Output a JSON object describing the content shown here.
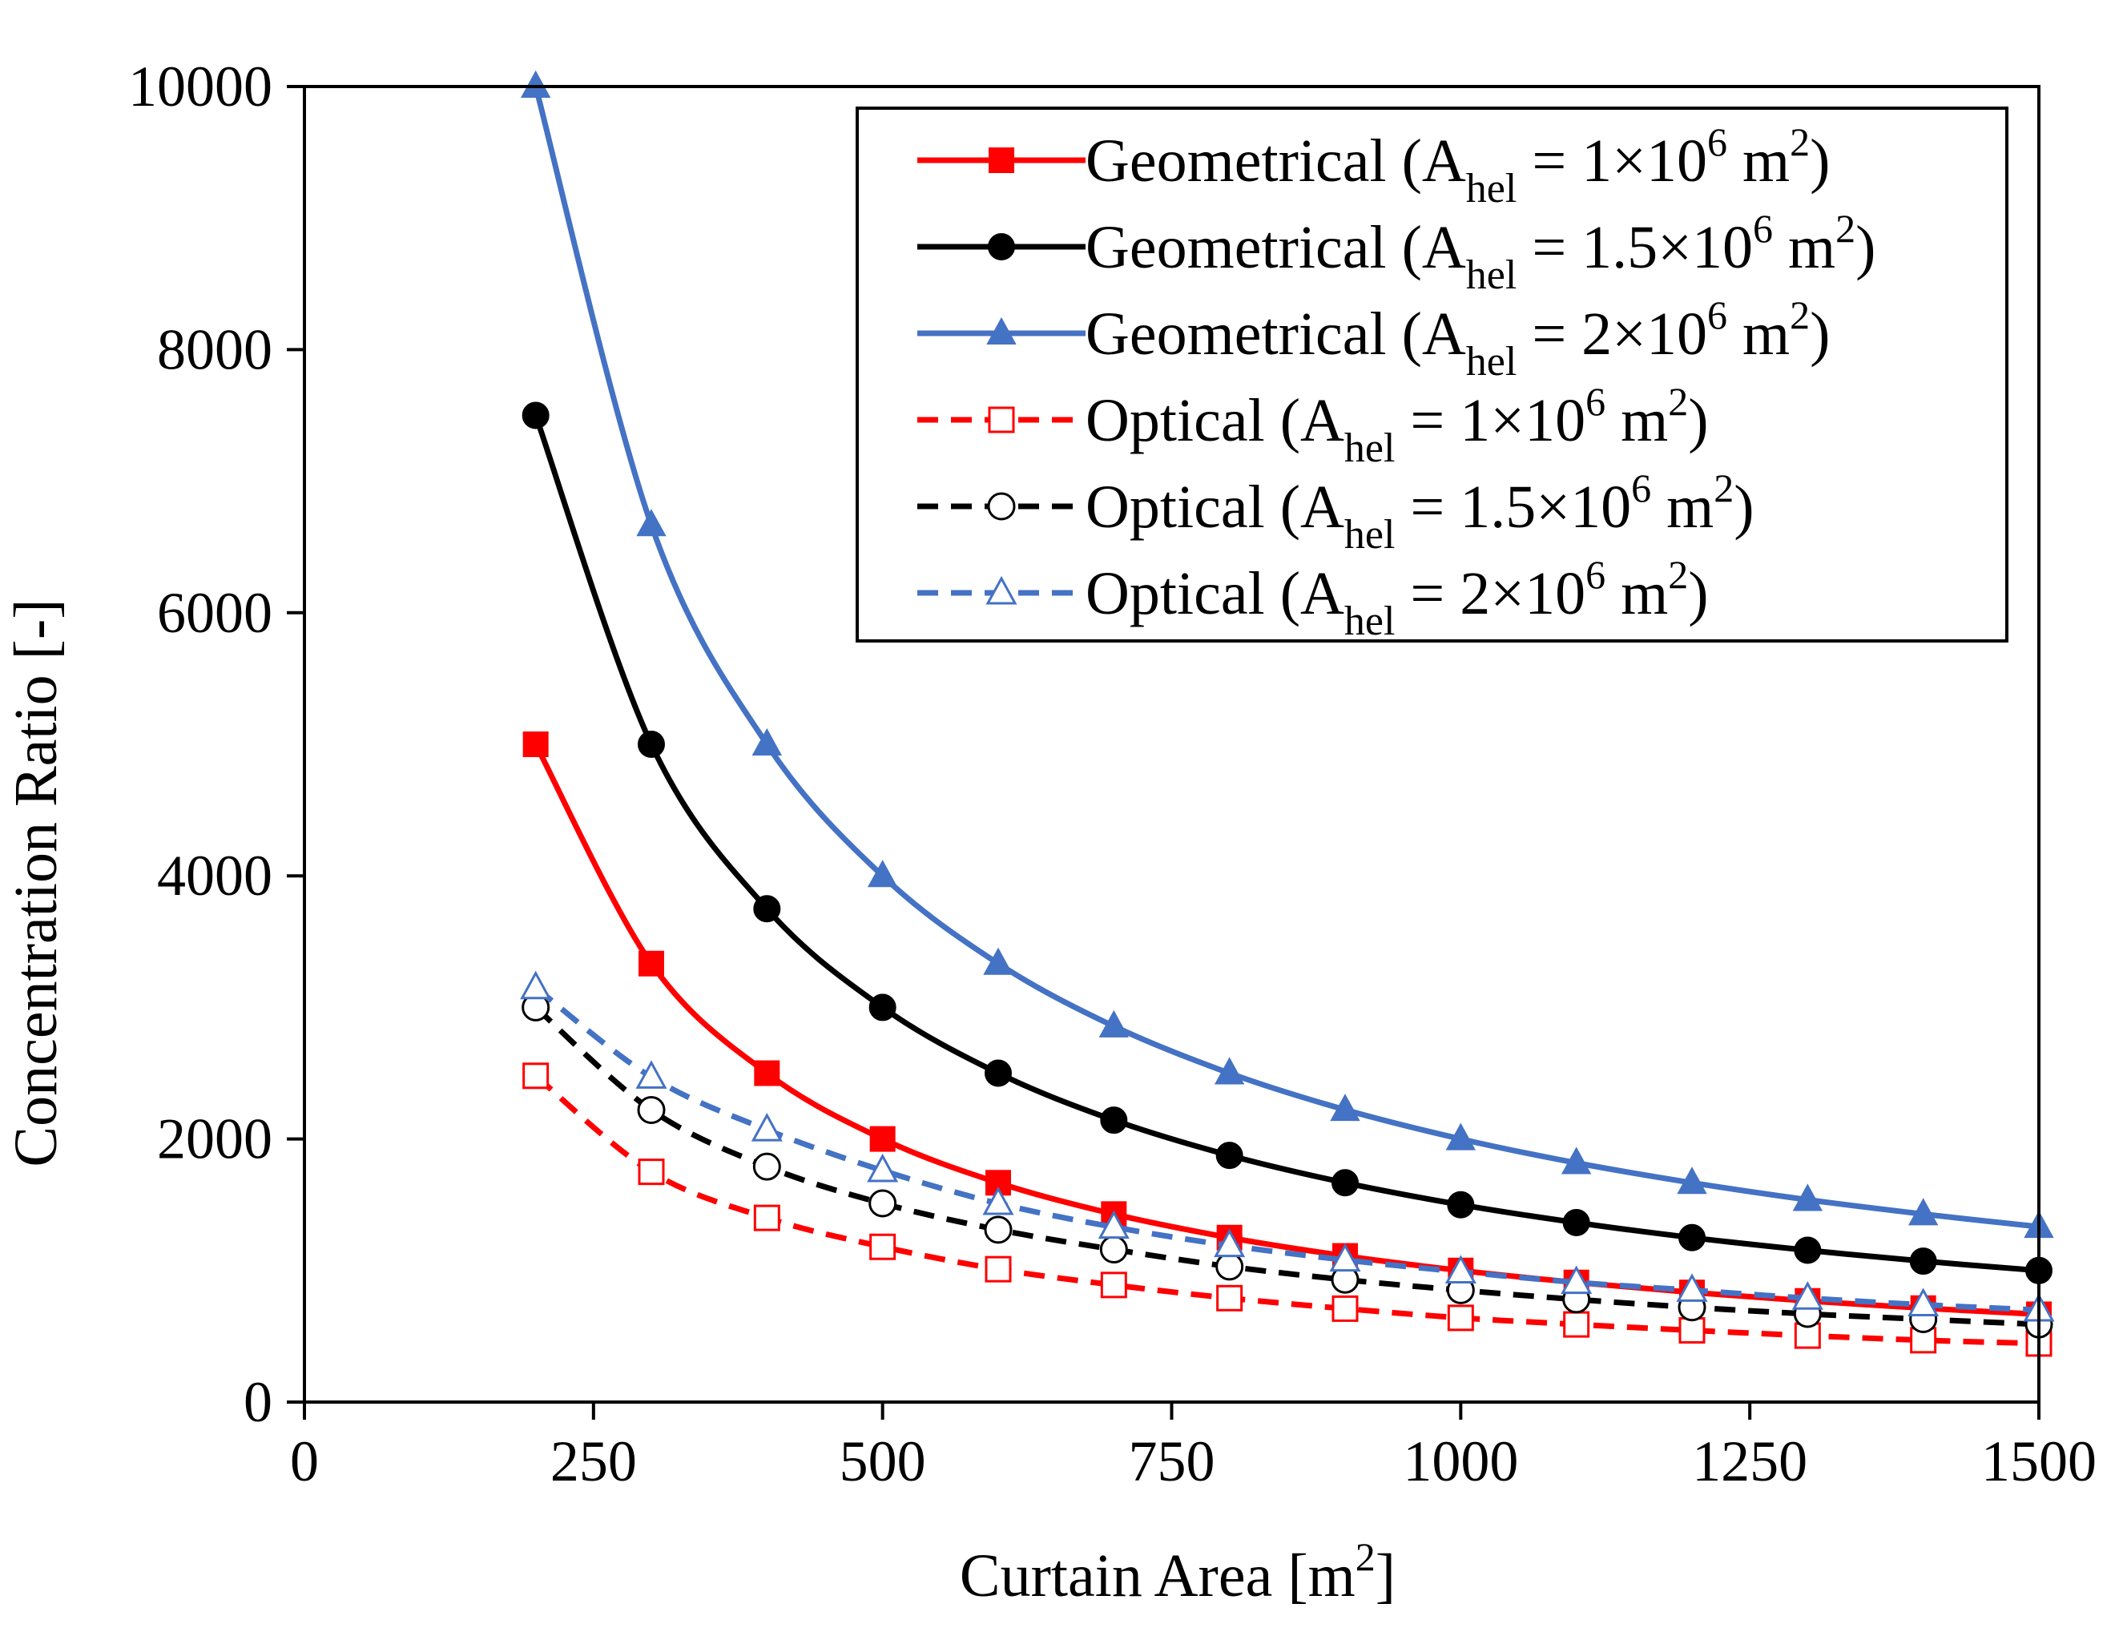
{
  "chart_data": {
    "type": "line",
    "title": "",
    "xlabel": "Curtain Area [m",
    "xlabel_sup": "2",
    "xlabel_end": "]",
    "ylabel": "Concentration Ratio [-]",
    "xlim": [
      0,
      1500
    ],
    "ylim": [
      0,
      10000
    ],
    "xticks": [
      0,
      250,
      500,
      750,
      1000,
      1250,
      1500
    ],
    "yticks": [
      0,
      2000,
      4000,
      6000,
      8000,
      10000
    ],
    "x": [
      200,
      300,
      400,
      500,
      600,
      700,
      800,
      900,
      1000,
      1100,
      1200,
      1300,
      1400,
      1500
    ],
    "legend_position": "top-right",
    "series": [
      {
        "name": "Geometrical (A_hel = 1×10^6 m^2)",
        "legend": {
          "prefix": "Geometrical (A",
          "sub": "hel",
          "mid": " = 1×10",
          "exp": "6",
          "unit": " m",
          "unit_exp": "2",
          "end": ")"
        },
        "color": "#ff0000",
        "line_style": "solid",
        "marker": "square",
        "filled": true,
        "values": [
          5000,
          3333,
          2500,
          2000,
          1667,
          1429,
          1250,
          1111,
          1000,
          909,
          833,
          769,
          714,
          667
        ]
      },
      {
        "name": "Geometrical (A_hel = 1.5×10^6 m^2)",
        "legend": {
          "prefix": "Geometrical (A",
          "sub": "hel",
          "mid": " = 1.5×10",
          "exp": "6",
          "unit": " m",
          "unit_exp": "2",
          "end": ")"
        },
        "color": "#000000",
        "line_style": "solid",
        "marker": "circle",
        "filled": true,
        "values": [
          7500,
          5000,
          3750,
          3000,
          2500,
          2143,
          1875,
          1667,
          1500,
          1364,
          1250,
          1154,
          1071,
          1000
        ]
      },
      {
        "name": "Geometrical (A_hel = 2×10^6 m^2)",
        "legend": {
          "prefix": "Geometrical (A",
          "sub": "hel",
          "mid": " = 2×10",
          "exp": "6",
          "unit": " m",
          "unit_exp": "2",
          "end": ")"
        },
        "color": "#4472c4",
        "line_style": "solid",
        "marker": "triangle",
        "filled": true,
        "values": [
          10000,
          6667,
          5000,
          4000,
          3333,
          2857,
          2500,
          2222,
          2000,
          1818,
          1667,
          1538,
          1429,
          1333
        ]
      },
      {
        "name": "Optical (A_hel = 1×10^6 m^2)",
        "legend": {
          "prefix": "Optical (A",
          "sub": "hel",
          "mid": " = 1×10",
          "exp": "6",
          "unit": " m",
          "unit_exp": "2",
          "end": ")"
        },
        "color": "#ff0000",
        "line_style": "dashed",
        "marker": "square",
        "filled": false,
        "values": [
          2480,
          1750,
          1400,
          1180,
          1010,
          890,
          790,
          710,
          640,
          590,
          545,
          505,
          470,
          445
        ]
      },
      {
        "name": "Optical (A_hel = 1.5×10^6 m^2)",
        "legend": {
          "prefix": "Optical (A",
          "sub": "hel",
          "mid": " = 1.5×10",
          "exp": "6",
          "unit": " m",
          "unit_exp": "2",
          "end": ")"
        },
        "color": "#000000",
        "line_style": "dashed",
        "marker": "circle",
        "filled": false,
        "values": [
          3000,
          2220,
          1790,
          1510,
          1310,
          1160,
          1030,
          930,
          850,
          780,
          720,
          670,
          630,
          590
        ]
      },
      {
        "name": "Optical (A_hel = 2×10^6 m^2)",
        "legend": {
          "prefix": "Optical (A",
          "sub": "hel",
          "mid": " = 2×10",
          "exp": "6",
          "unit": " m",
          "unit_exp": "2",
          "end": ")"
        },
        "color": "#4472c4",
        "line_style": "dashed",
        "marker": "triangle",
        "filled": false,
        "values": [
          3150,
          2470,
          2070,
          1760,
          1510,
          1330,
          1190,
          1080,
          990,
          910,
          850,
          790,
          740,
          700
        ]
      }
    ]
  }
}
